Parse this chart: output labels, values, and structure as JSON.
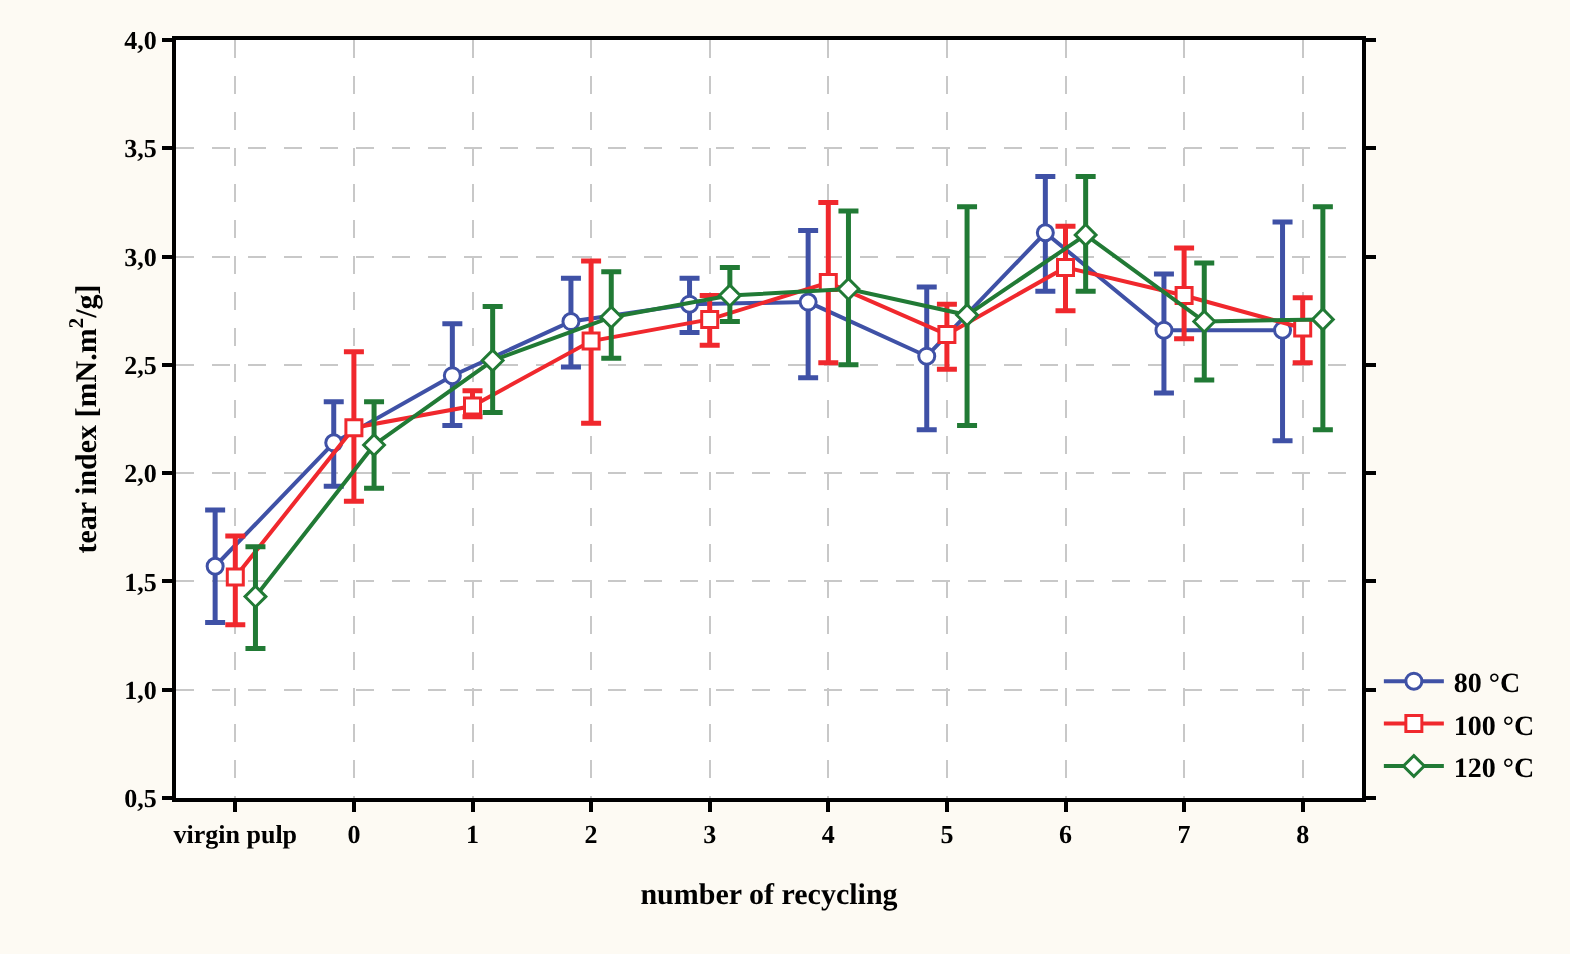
{
  "chart_data": {
    "type": "line",
    "xlabel": "number of recycling",
    "ylabel": "tear index [mN.m$^{2}$/g]",
    "categories": [
      "virgin pulp",
      "0",
      "1",
      "2",
      "3",
      "4",
      "5",
      "6",
      "7",
      "8"
    ],
    "ylim": [
      0.5,
      4.0
    ],
    "yticks": [
      {
        "value": 0.5,
        "label": "0,5"
      },
      {
        "value": 1.0,
        "label": "1,0"
      },
      {
        "value": 1.5,
        "label": "1,5"
      },
      {
        "value": 2.0,
        "label": "2,0"
      },
      {
        "value": 2.5,
        "label": "2,5"
      },
      {
        "value": 3.0,
        "label": "3,0"
      },
      {
        "value": 3.5,
        "label": "3,5"
      },
      {
        "value": 4.0,
        "label": "4,0"
      }
    ],
    "grid": true,
    "legend": "bottom right",
    "line_style": "solid",
    "series": [
      {
        "name": "80 °C",
        "color": "#3f51a6",
        "marker": "circle",
        "values": [
          1.57,
          2.14,
          2.45,
          2.7,
          2.78,
          2.79,
          2.54,
          3.11,
          2.66,
          2.66
        ],
        "errors": [
          [
            1.31,
            1.83
          ],
          [
            1.94,
            2.33
          ],
          [
            2.22,
            2.69
          ],
          [
            2.49,
            2.9
          ],
          [
            2.65,
            2.9
          ],
          [
            2.44,
            3.12
          ],
          [
            2.2,
            2.86
          ],
          [
            2.84,
            3.37
          ],
          [
            2.37,
            2.92
          ],
          [
            2.15,
            3.16
          ]
        ]
      },
      {
        "name": "100 °C",
        "color": "#f0282d",
        "marker": "square",
        "values": [
          1.52,
          2.21,
          2.31,
          2.61,
          2.71,
          2.88,
          2.64,
          2.95,
          2.82,
          2.67
        ],
        "errors": [
          [
            1.3,
            1.71
          ],
          [
            1.87,
            2.56
          ],
          [
            2.26,
            2.38
          ],
          [
            2.23,
            2.98
          ],
          [
            2.59,
            2.82
          ],
          [
            2.51,
            3.25
          ],
          [
            2.48,
            2.78
          ],
          [
            2.75,
            3.14
          ],
          [
            2.62,
            3.04
          ],
          [
            2.51,
            2.81
          ]
        ]
      },
      {
        "name": "120 °C",
        "color": "#217a35",
        "marker": "diamond",
        "values": [
          1.43,
          2.13,
          2.52,
          2.72,
          2.82,
          2.85,
          2.73,
          3.1,
          2.7,
          2.71
        ],
        "errors": [
          [
            1.19,
            1.66
          ],
          [
            1.93,
            2.33
          ],
          [
            2.28,
            2.77
          ],
          [
            2.53,
            2.93
          ],
          [
            2.7,
            2.95
          ],
          [
            2.5,
            3.21
          ],
          [
            2.22,
            3.23
          ],
          [
            2.84,
            3.37
          ],
          [
            2.43,
            2.97
          ],
          [
            2.2,
            3.23
          ]
        ]
      }
    ]
  }
}
